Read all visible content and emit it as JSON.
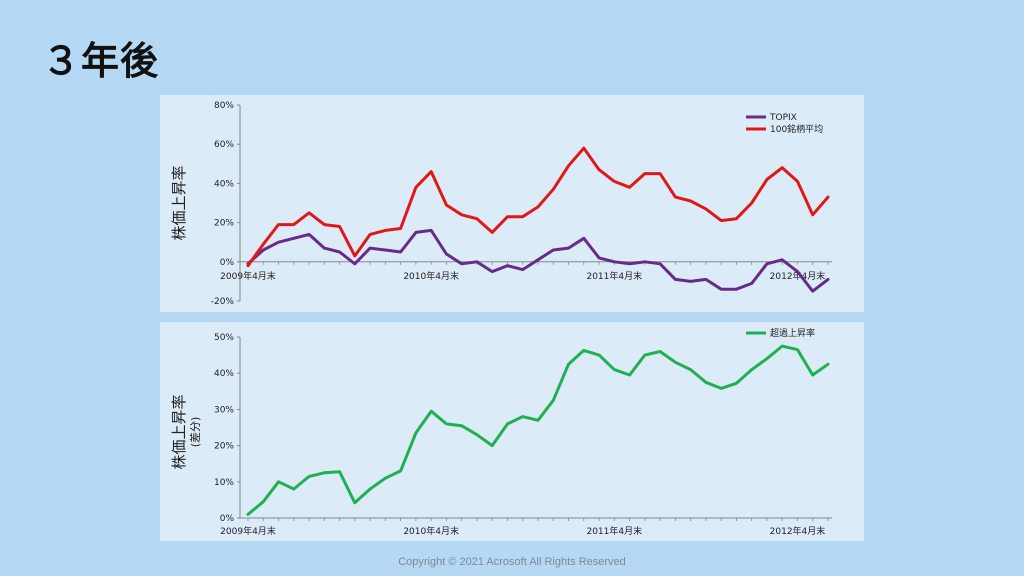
{
  "slide": {
    "title": "３年後",
    "copyright": "Copyright © 2021  Acrosoft All Rights Reserved"
  },
  "colors": {
    "topix": "#6a2a8a",
    "avg100": "#e01818",
    "excess": "#1fb050",
    "axis": "#888888"
  },
  "chart_data": [
    {
      "type": "line",
      "ylabel": "株価上昇率",
      "ylim": [
        -20,
        80
      ],
      "y_ticks": [
        -20,
        0,
        20,
        40,
        60,
        80
      ],
      "y_tick_labels": [
        "-20%",
        "0%",
        "20%",
        "40%",
        "60%",
        "80%"
      ],
      "x_tick_labels": [
        "2009年4月末",
        "2010年4月末",
        "2011年4月末",
        "2012年4月末"
      ],
      "x_tick_index": [
        0,
        12,
        24,
        36
      ],
      "grid": false,
      "legend": "top-right",
      "series": [
        {
          "name": "TOPIX",
          "color": "#6a2a8a",
          "values": [
            -1,
            6,
            10,
            12,
            14,
            7,
            5,
            -1,
            7,
            6,
            5,
            15,
            16,
            4,
            -1,
            0,
            -5,
            -2,
            -4,
            1,
            6,
            7,
            12,
            2,
            0,
            -1,
            0,
            -1,
            -9,
            -10,
            -9,
            -14,
            -14,
            -11,
            -1,
            1,
            -5,
            -15,
            -9
          ]
        },
        {
          "name": "100銘柄平均",
          "color": "#e01818",
          "values": [
            -2,
            9,
            19,
            19,
            25,
            19,
            18,
            3,
            14,
            16,
            17,
            38,
            46,
            29,
            24,
            22,
            15,
            23,
            23,
            28,
            37,
            49,
            58,
            47,
            41,
            38,
            45,
            45,
            33,
            31,
            27,
            21,
            22,
            30,
            42,
            48,
            41,
            24,
            33
          ]
        }
      ]
    },
    {
      "type": "line",
      "ylabel": "株価上昇率",
      "ylabel_sub": "(差分)",
      "ylim": [
        0,
        50
      ],
      "y_ticks": [
        0,
        10,
        20,
        30,
        40,
        50
      ],
      "y_tick_labels": [
        "0%",
        "10%",
        "20%",
        "30%",
        "40%",
        "50%"
      ],
      "x_tick_labels": [
        "2009年4月末",
        "2010年4月末",
        "2011年4月末",
        "2012年4月末"
      ],
      "x_tick_index": [
        0,
        12,
        24,
        36
      ],
      "grid": false,
      "legend": "top-right",
      "series": [
        {
          "name": "超過上昇率",
          "color": "#1fb050",
          "values": [
            1,
            4.5,
            10,
            8,
            11.5,
            12.5,
            12.8,
            4.2,
            8,
            11,
            13,
            23.5,
            29.5,
            26,
            25.5,
            23,
            20,
            26,
            28,
            27,
            32.5,
            42.5,
            46.3,
            45,
            41,
            39.5,
            45,
            46,
            43,
            41,
            37.5,
            35.8,
            37.2,
            41,
            44,
            47.5,
            46.5,
            39.5,
            42.5
          ]
        }
      ]
    }
  ]
}
